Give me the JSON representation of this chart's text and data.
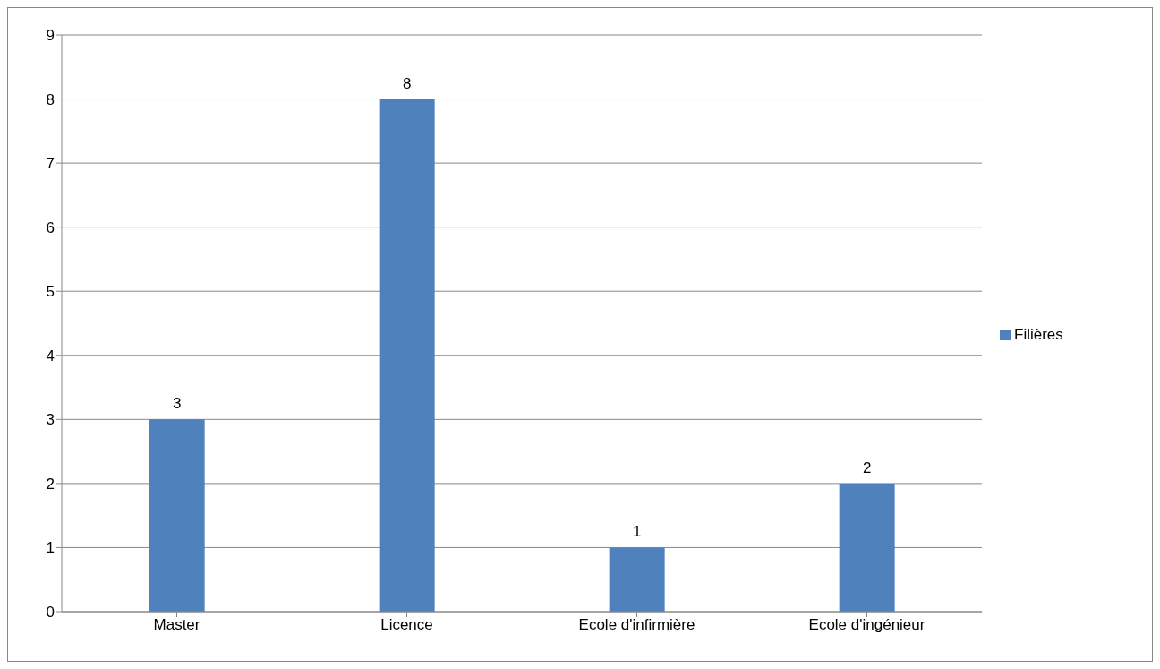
{
  "chart_data": {
    "type": "bar",
    "categories": [
      "Master",
      "Licence",
      "Ecole d'infirmière",
      "Ecole d'ingénieur"
    ],
    "series": [
      {
        "name": "Filières",
        "color": "#4f81bd",
        "values": [
          3,
          8,
          1,
          2
        ]
      }
    ],
    "ylim": [
      0,
      9
    ],
    "yticks": [
      0,
      1,
      2,
      3,
      4,
      5,
      6,
      7,
      8,
      9
    ],
    "grid": "y",
    "legend": "right",
    "data_labels": true
  }
}
